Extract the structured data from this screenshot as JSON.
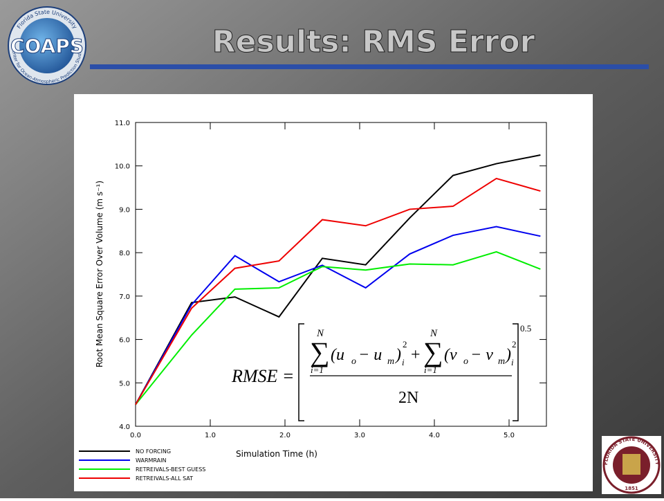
{
  "slide_title": "Results:  RMS Error",
  "logo": {
    "name": "COAPS",
    "top_ring": "Florida State University",
    "bottom_ring": "Center for Ocean-Atmospheric Prediction Studies"
  },
  "seal": {
    "ring": "FLORIDA STATE UNIVERSITY",
    "year": "1851"
  },
  "formula": [
    "RMSE =",
    "∑",
    "N",
    "i=1",
    "(u",
    "o",
    "− u",
    "m",
    ")",
    "i",
    "2",
    "+",
    "∑",
    "N",
    "i=1",
    "(v",
    "o",
    "− v",
    "m",
    ")",
    "i",
    "2",
    "2N",
    "0.5"
  ],
  "chart_data": {
    "type": "line",
    "x_label": "Simulation Time (h)",
    "y_label": "Root Mean Square Error Over Volume (m s⁻¹)",
    "x": [
      0,
      0.75,
      1.33,
      1.92,
      2.5,
      3.08,
      3.67,
      4.25,
      4.83,
      5.42
    ],
    "series": [
      {
        "name": "NO FORCING",
        "color": "#000000",
        "values": [
          4.5,
          6.85,
          6.98,
          6.52,
          7.87,
          7.72,
          8.8,
          9.78,
          10.05,
          10.25
        ]
      },
      {
        "name": "WARMRAIN",
        "color": "#0000ee",
        "values": [
          4.5,
          6.8,
          7.93,
          7.33,
          7.71,
          7.19,
          7.97,
          8.4,
          8.6,
          8.38
        ]
      },
      {
        "name": "RETREIVALS-BEST GUESS",
        "color": "#00ee00",
        "values": [
          4.5,
          6.1,
          7.16,
          7.19,
          7.68,
          7.6,
          7.74,
          7.72,
          8.02,
          7.62
        ]
      },
      {
        "name": "RETREIVALS-ALL SAT",
        "color": "#ee0000",
        "values": [
          4.5,
          6.72,
          7.64,
          7.81,
          8.76,
          8.62,
          9.0,
          9.07,
          9.71,
          9.42
        ]
      }
    ],
    "xlim": [
      0,
      5.5
    ],
    "ylim": [
      4,
      11
    ],
    "xticks": [
      {
        "value": 0,
        "label": "0.0"
      },
      {
        "value": 1,
        "label": "1.0"
      },
      {
        "value": 2,
        "label": "2.0"
      },
      {
        "value": 3,
        "label": "3.0"
      },
      {
        "value": 4,
        "label": "4.0"
      },
      {
        "value": 5,
        "label": "5.0"
      }
    ],
    "yticks": [
      {
        "value": 4,
        "label": "4.0"
      },
      {
        "value": 5,
        "label": "5.0"
      },
      {
        "value": 6,
        "label": "6.0"
      },
      {
        "value": 7,
        "label": "7.0"
      },
      {
        "value": 8,
        "label": "8.0"
      },
      {
        "value": 9,
        "label": "9.0"
      },
      {
        "value": 10,
        "label": "10.0"
      },
      {
        "value": 11,
        "label": "11.0"
      }
    ],
    "grid": false
  }
}
